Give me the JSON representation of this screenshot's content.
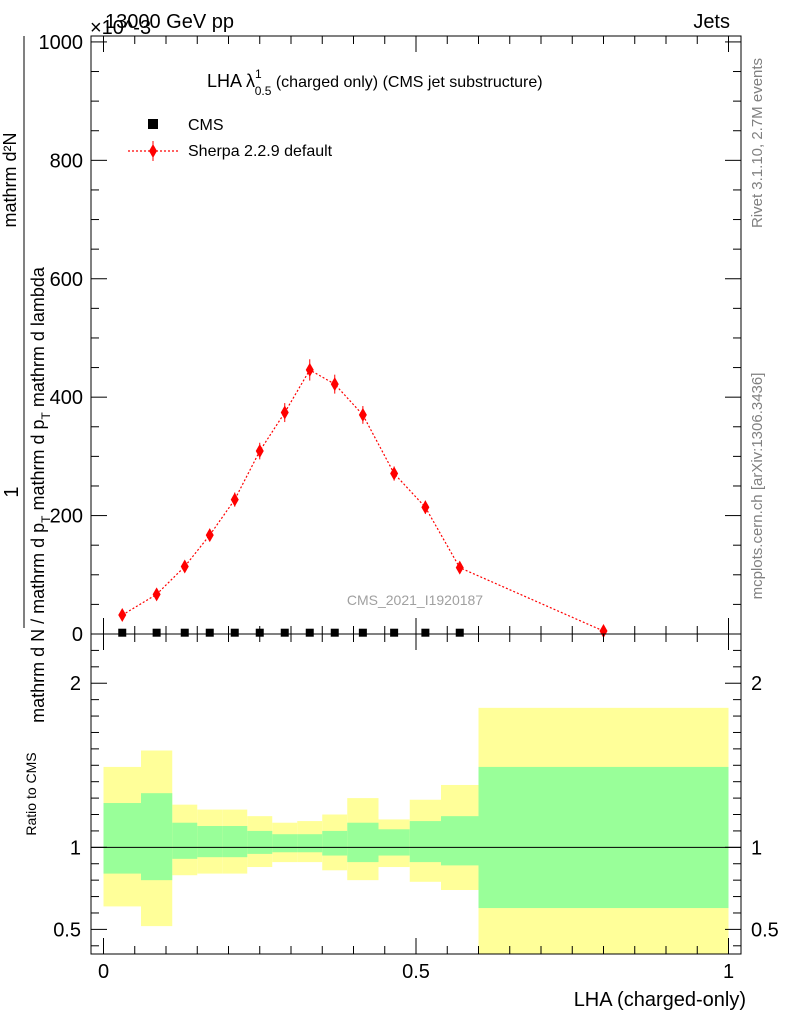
{
  "header": {
    "left": "13000 GeV pp",
    "right": "Jets",
    "exponent": "×10^-3"
  },
  "side_labels": {
    "rivet": "Rivet 3.1.10,  2.7M events",
    "mcplots": "mcplots.cern.ch [arXiv:1306.3436]"
  },
  "plot_title": {
    "prefix": "LHA λ",
    "sup": "1",
    "sub": "0.5",
    "suffix": " (charged only) (CMS jet substructure)"
  },
  "ylabel": {
    "numerator": "1",
    "denominator_main": "mathrm d N / mathrm d p",
    "denominator_sub": "T",
    "denominator_rest": " mathrm d p",
    "denominator_sub2": "T",
    "denominator_tail": " mathrm d lambda",
    "top_part": "mathrm d²N"
  },
  "watermark": "CMS_2021_I1920187",
  "legend": {
    "cms": "CMS",
    "sherpa": "Sherpa 2.2.9 default"
  },
  "ratio_ylabel": "Ratio to CMS",
  "xlabel": "LHA (charged-only)",
  "colors": {
    "mc": "#ff0000",
    "band_inner": "#99ff99",
    "band_outer": "#ffff99",
    "data": "#000000"
  },
  "chart_data": [
    {
      "type": "scatter",
      "title": "LHA λ^1_0.5 (charged only) (CMS jet substructure)",
      "xlim": [
        -0.02,
        1.02
      ],
      "ylim": [
        0,
        1010
      ],
      "yticks": [
        0,
        200,
        400,
        600,
        800,
        1000
      ],
      "y_scale_note": "×10^-3",
      "series": [
        {
          "name": "CMS",
          "x": [
            0.03,
            0.085,
            0.13,
            0.17,
            0.21,
            0.25,
            0.29,
            0.33,
            0.37,
            0.415,
            0.465,
            0.515,
            0.57
          ],
          "y": [
            0.5,
            0.5,
            0.5,
            0.5,
            0.5,
            0.5,
            0.5,
            0.5,
            0.5,
            0.5,
            0.5,
            0.5,
            0.5
          ]
        },
        {
          "name": "Sherpa 2.2.9 default",
          "x": [
            0.03,
            0.085,
            0.13,
            0.17,
            0.21,
            0.25,
            0.29,
            0.33,
            0.37,
            0.415,
            0.465,
            0.515,
            0.57,
            0.8
          ],
          "y": [
            32,
            67,
            114,
            167,
            227,
            309,
            374,
            446,
            422,
            370,
            271,
            214,
            112,
            5
          ],
          "err": [
            5,
            6,
            9,
            10,
            12,
            14,
            16,
            18,
            16,
            15,
            12,
            11,
            8,
            2
          ]
        }
      ]
    },
    {
      "type": "area",
      "title": "Ratio to CMS",
      "xlim": [
        -0.02,
        1.02
      ],
      "ylim": [
        0.35,
        2.3
      ],
      "yticks": [
        0.5,
        1,
        2
      ],
      "xticks": [
        "0",
        "0.5",
        "1"
      ],
      "reference": 1,
      "bins": [
        {
          "x": [
            0.0,
            0.06
          ],
          "inner": [
            0.84,
            1.27
          ],
          "outer": [
            0.64,
            1.49
          ]
        },
        {
          "x": [
            0.06,
            0.11
          ],
          "inner": [
            0.8,
            1.33
          ],
          "outer": [
            0.52,
            1.59
          ]
        },
        {
          "x": [
            0.11,
            0.15
          ],
          "inner": [
            0.93,
            1.15
          ],
          "outer": [
            0.83,
            1.26
          ]
        },
        {
          "x": [
            0.15,
            0.19
          ],
          "inner": [
            0.94,
            1.13
          ],
          "outer": [
            0.84,
            1.23
          ]
        },
        {
          "x": [
            0.19,
            0.23
          ],
          "inner": [
            0.94,
            1.13
          ],
          "outer": [
            0.84,
            1.23
          ]
        },
        {
          "x": [
            0.23,
            0.27
          ],
          "inner": [
            0.96,
            1.1
          ],
          "outer": [
            0.88,
            1.19
          ]
        },
        {
          "x": [
            0.27,
            0.31
          ],
          "inner": [
            0.97,
            1.08
          ],
          "outer": [
            0.91,
            1.15
          ]
        },
        {
          "x": [
            0.31,
            0.35
          ],
          "inner": [
            0.97,
            1.08
          ],
          "outer": [
            0.91,
            1.16
          ]
        },
        {
          "x": [
            0.35,
            0.39
          ],
          "inner": [
            0.95,
            1.1
          ],
          "outer": [
            0.86,
            1.2
          ]
        },
        {
          "x": [
            0.39,
            0.44
          ],
          "inner": [
            0.91,
            1.15
          ],
          "outer": [
            0.8,
            1.3
          ]
        },
        {
          "x": [
            0.44,
            0.49
          ],
          "inner": [
            0.95,
            1.11
          ],
          "outer": [
            0.88,
            1.17
          ]
        },
        {
          "x": [
            0.49,
            0.54
          ],
          "inner": [
            0.91,
            1.16
          ],
          "outer": [
            0.79,
            1.29
          ]
        },
        {
          "x": [
            0.54,
            0.6
          ],
          "inner": [
            0.89,
            1.19
          ],
          "outer": [
            0.74,
            1.38
          ]
        },
        {
          "x": [
            0.6,
            1.0
          ],
          "inner": [
            0.63,
            1.49
          ],
          "outer": [
            0.35,
            1.85
          ]
        }
      ]
    }
  ]
}
